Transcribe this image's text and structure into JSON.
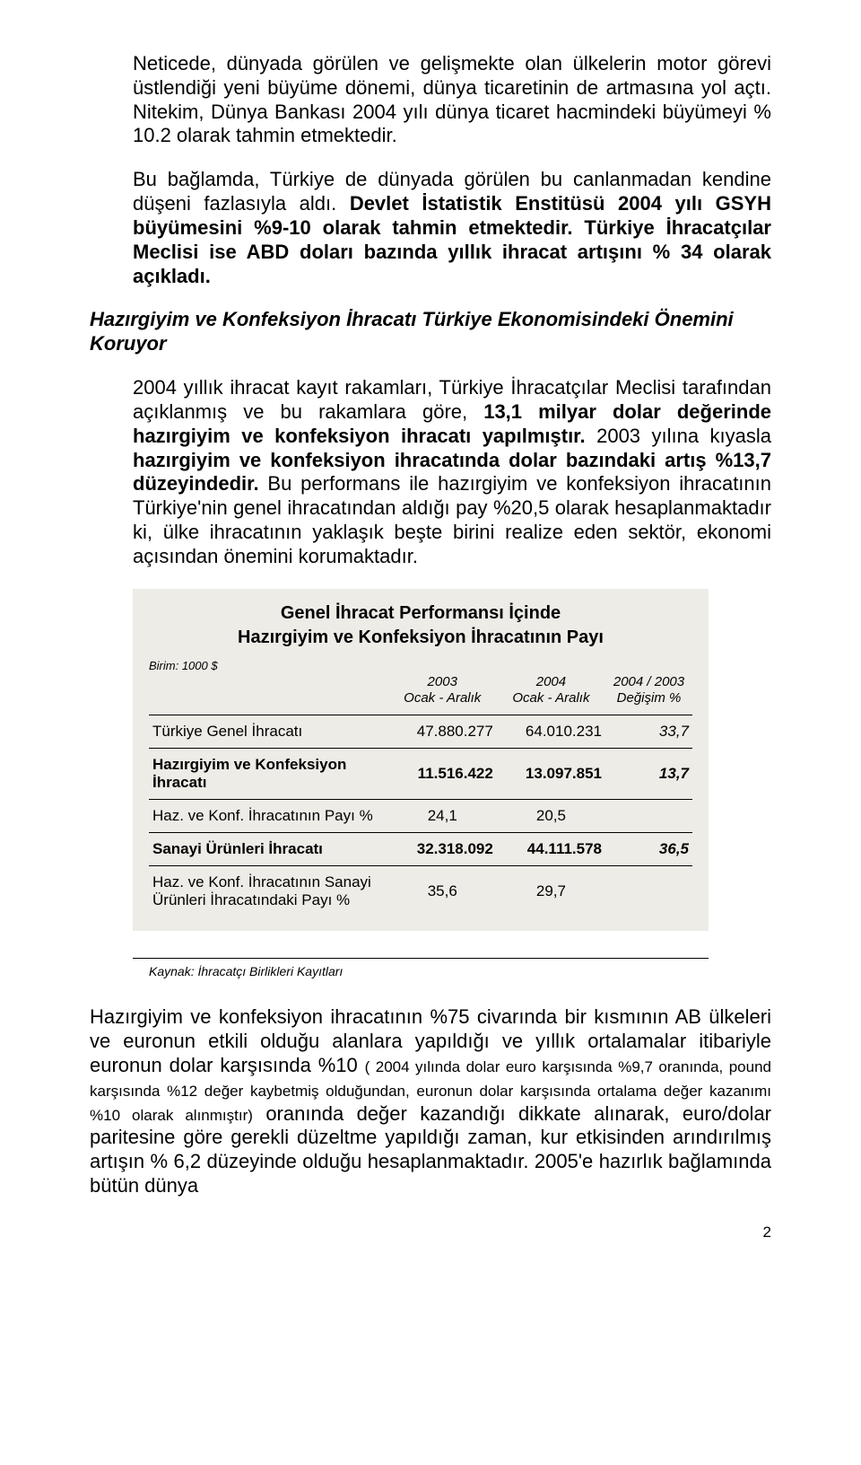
{
  "colors": {
    "page_bg": "#ffffff",
    "table_bg": "#eeece7",
    "text": "#000000",
    "border": "#000000"
  },
  "p1": {
    "a": "Neticede, dünyada görülen ve gelişmekte olan ülkelerin motor görevi üstlendiği yeni büyüme dönemi, dünya ticaretinin de artmasına yol açtı. Nitekim, Dünya Bankası 2004 yılı dünya ticaret hacmindeki büyümeyi % 10.2 olarak tahmin etmektedir."
  },
  "p2": {
    "a": "Bu bağlamda, Türkiye de dünyada görülen bu canlanmadan kendine düşeni fazlasıyla aldı. ",
    "b": "Devlet İstatistik Enstitüsü 2004 yılı GSYH büyümesini %9-10 olarak tahmin etmektedir. Türkiye İhracatçılar Meclisi ise ABD doları bazında yıllık ihracat artışını % 34 olarak açıkladı."
  },
  "heading1": "Hazırgiyim ve Konfeksiyon İhracatı Türkiye Ekonomisindeki Önemini Koruyor",
  "p3": {
    "a": "2004 yıllık ihracat kayıt rakamları,  Türkiye İhracatçılar Meclisi tarafından açıklanmış ve bu rakamlara göre, ",
    "b": "13,1 milyar dolar değerinde hazırgiyim ve konfeksiyon ihracatı yapılmıştır.",
    "c": " 2003 yılına kıyasla ",
    "d": "hazırgiyim ve konfeksiyon ihracatında dolar bazındaki artış %13,7 düzeyindedir.",
    "e": " Bu performans ile hazırgiyim ve konfeksiyon ihracatının Türkiye'nin genel ihracatından aldığı pay %20,5 olarak hesaplanmaktadır ki, ülke ihracatının yaklaşık beşte birini realize eden sektör, ekonomi açısından önemini korumaktadır."
  },
  "table": {
    "title1": "Genel İhracat Performansı İçinde",
    "title2": "Hazırgiyim ve Konfeksiyon İhracatının Payı",
    "unit": "Birim: 1000 $",
    "cols": {
      "c1a": "2003",
      "c1b": "Ocak - Aralık",
      "c2a": "2004",
      "c2b": "Ocak - Aralık",
      "c3a": "2004 / 2003",
      "c3b": "Değişim %"
    },
    "rows": [
      {
        "label": "Türkiye Genel İhracatı",
        "v1": "47.880.277",
        "v2": "64.010.231",
        "chg": "33,7",
        "bold": false
      },
      {
        "label": "Hazırgiyim ve Konfeksiyon İhracatı",
        "v1": "11.516.422",
        "v2": "13.097.851",
        "chg": "13,7",
        "bold": true
      },
      {
        "label": "Haz. ve Konf. İhracatının Payı %",
        "v1": "24,1",
        "v2": "20,5",
        "chg": "",
        "bold": false,
        "center": true
      },
      {
        "label": "Sanayi Ürünleri İhracatı",
        "v1": "32.318.092",
        "v2": "44.111.578",
        "chg": "36,5",
        "bold": true
      },
      {
        "label": "Haz. ve Konf. İhracatının Sanayi Ürünleri İhracatındaki Payı %",
        "v1": "35,6",
        "v2": "29,7",
        "chg": "",
        "bold": false,
        "center": true
      }
    ],
    "source": "Kaynak: İhracatçı Birlikleri Kayıtları",
    "font_size_title": 20,
    "font_size_body": 17,
    "font_size_header": 15,
    "font_size_unit": 13
  },
  "p4": {
    "a": "Hazırgiyim ve konfeksiyon ihracatının %75 civarında bir kısmının AB ülkeleri ve euronun etkili olduğu alanlara yapıldığı ve yıllık ortalamalar itibariyle euronun dolar karşısında %10 ",
    "b": "( 2004 yılında dolar euro karşısında %9,7 oranında, pound karşısında %12 değer kaybetmiş olduğundan, euronun dolar karşısında ortalama değer kazanımı %10 olarak alınmıştır)",
    "c": " oranında değer kazandığı dikkate alınarak, euro/dolar paritesine göre gerekli düzeltme yapıldığı zaman, ",
    "d": "kur etkisinden arındırılmış artışın % 6,2 düzeyinde",
    "e": " olduğu hesaplanmaktadır.  2005'e hazırlık bağlamında bütün dünya"
  },
  "pagenum": "2"
}
